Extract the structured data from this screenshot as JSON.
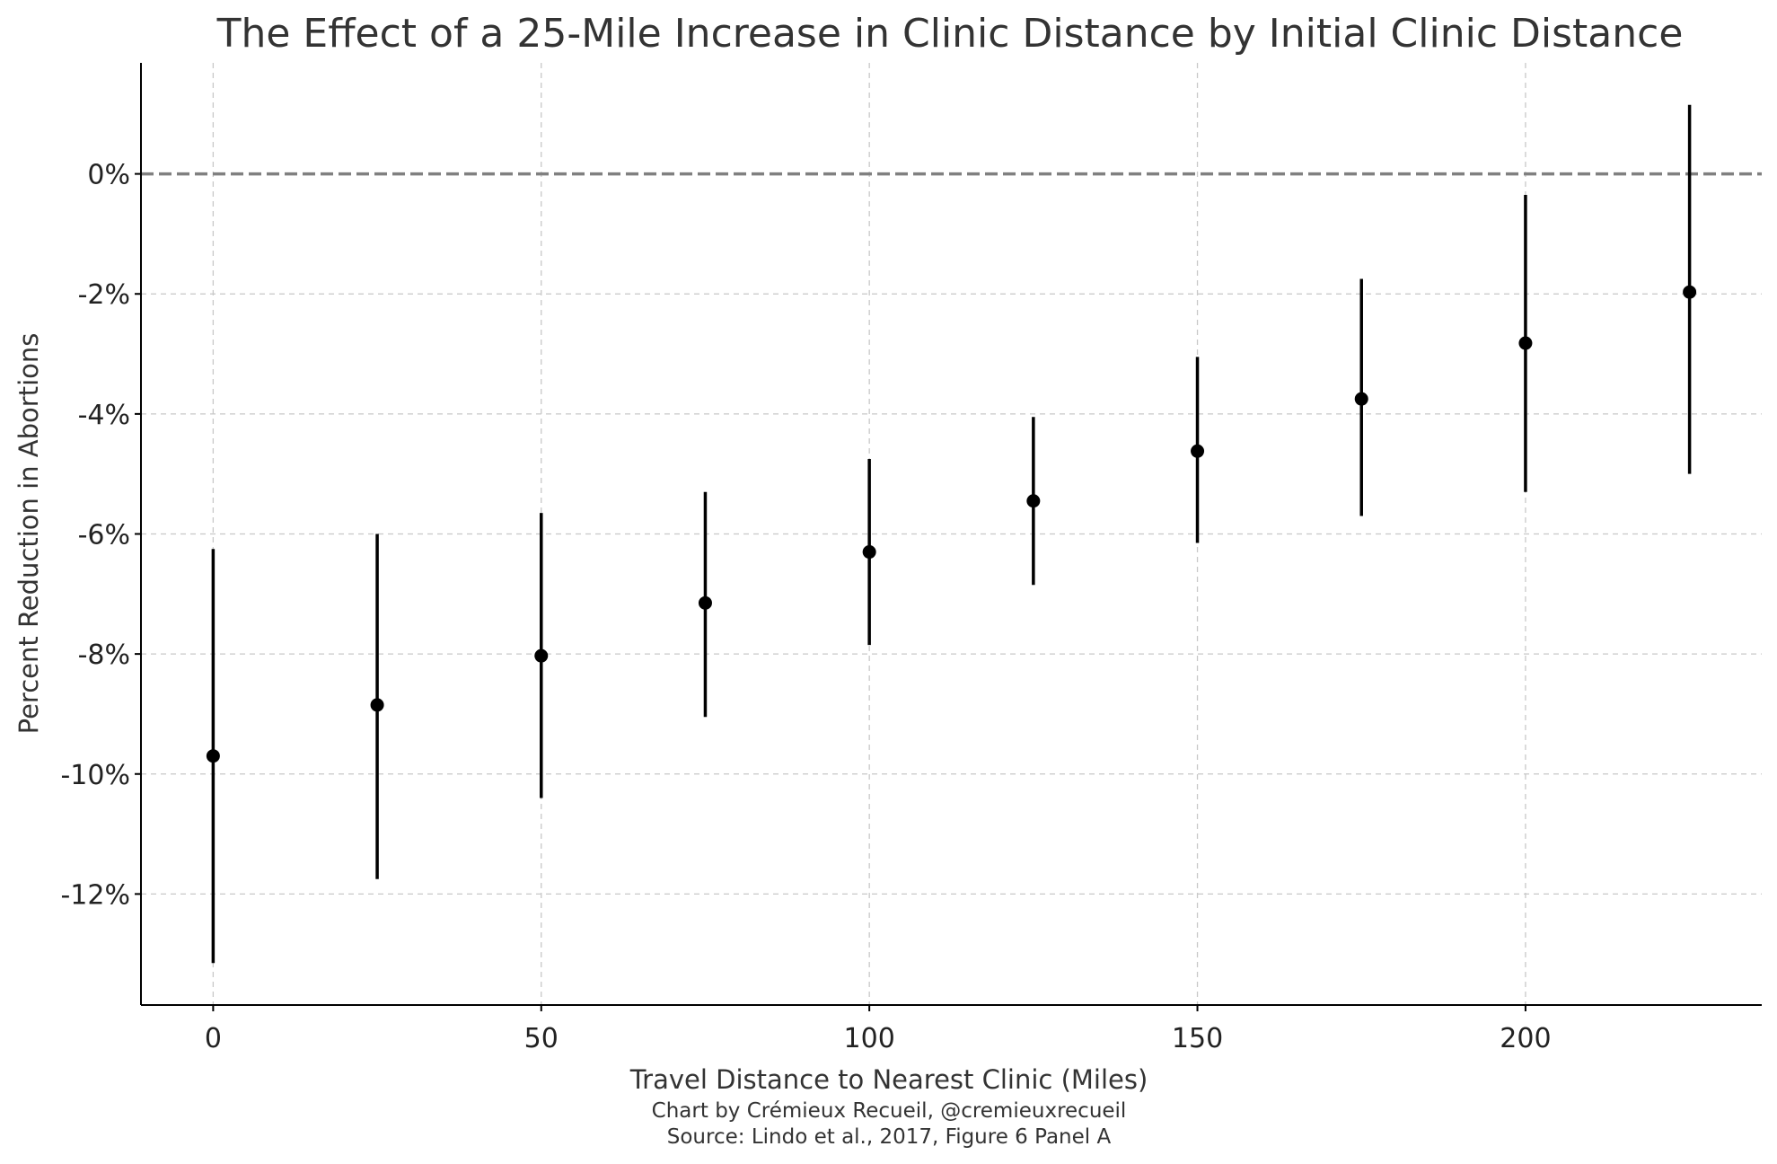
{
  "chart_data": {
    "type": "scatter",
    "title": "The Effect of a 25-Mile Increase in Clinic Distance by Initial Clinic Distance",
    "xlabel": "Travel Distance to Nearest Clinic (Miles)",
    "ylabel": "Percent Reduction in Abortions",
    "xlim": [
      -11,
      236
    ],
    "ylim": [
      -13.85,
      1.85
    ],
    "xticks": [
      0,
      50,
      100,
      150,
      200
    ],
    "xtick_labels": [
      "0",
      "50",
      "100",
      "150",
      "200"
    ],
    "yticks": [
      0,
      -2,
      -4,
      -6,
      -8,
      -10,
      -12
    ],
    "ytick_labels": [
      "0%",
      "-2%",
      "-4%",
      "-6%",
      "-8%",
      "-10%",
      "-12%"
    ],
    "grid": true,
    "reference_line": {
      "y": 0,
      "style": "dashed"
    },
    "series": [
      {
        "x": [
          0,
          25,
          50,
          75,
          100,
          125,
          150,
          175,
          200,
          225
        ],
        "y": [
          -9.7,
          -8.85,
          -8.03,
          -7.15,
          -6.3,
          -5.45,
          -4.62,
          -3.75,
          -2.82,
          -1.97
        ],
        "ci_low": [
          -13.15,
          -11.75,
          -10.4,
          -9.05,
          -7.85,
          -6.85,
          -6.15,
          -5.7,
          -5.3,
          -5.0
        ],
        "ci_high": [
          -6.25,
          -6.0,
          -5.65,
          -5.3,
          -4.75,
          -4.05,
          -3.05,
          -1.75,
          -0.35,
          1.15
        ]
      }
    ]
  },
  "footer": {
    "credit": "Chart by Crémieux Recueil, @cremieuxrecueil",
    "source": "Source: Lindo et al., 2017, Figure 6 Panel A"
  }
}
